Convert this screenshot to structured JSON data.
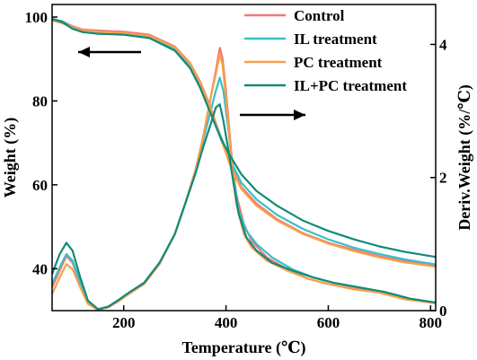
{
  "chart_data": {
    "type": "line",
    "xlabel": "Temperature (℃)",
    "ylabel_left": "Weight (%)",
    "ylabel_right": "Deriv.Weight (%/℃)",
    "xlim": [
      60,
      810
    ],
    "ylim_left": [
      30,
      103
    ],
    "ylim_right": [
      0,
      4.6
    ],
    "x_ticks": [
      200,
      400,
      600,
      800
    ],
    "y_ticks_left": [
      40,
      60,
      80,
      100
    ],
    "y_ticks_right": [
      0,
      2,
      4
    ],
    "legend_position": "top-right",
    "grid": false,
    "series": [
      {
        "name": "Control",
        "color": "#f07878",
        "weight": [
          [
            60,
            99.5
          ],
          [
            80,
            99.0
          ],
          [
            100,
            97.8
          ],
          [
            120,
            97.0
          ],
          [
            150,
            96.8
          ],
          [
            200,
            96.5
          ],
          [
            250,
            95.8
          ],
          [
            300,
            93.0
          ],
          [
            330,
            89.0
          ],
          [
            350,
            84.5
          ],
          [
            370,
            78.5
          ],
          [
            390,
            71.0
          ],
          [
            410,
            64.5
          ],
          [
            430,
            59.5
          ],
          [
            460,
            55.5
          ],
          [
            500,
            51.8
          ],
          [
            550,
            48.5
          ],
          [
            600,
            46.2
          ],
          [
            650,
            44.5
          ],
          [
            700,
            43.0
          ],
          [
            750,
            41.8
          ],
          [
            810,
            40.8
          ]
        ],
        "deriv": [
          [
            60,
            0.35
          ],
          [
            75,
            0.6
          ],
          [
            88,
            0.82
          ],
          [
            100,
            0.72
          ],
          [
            115,
            0.4
          ],
          [
            130,
            0.12
          ],
          [
            150,
            0.02
          ],
          [
            170,
            0.05
          ],
          [
            190,
            0.15
          ],
          [
            210,
            0.25
          ],
          [
            240,
            0.4
          ],
          [
            270,
            0.7
          ],
          [
            300,
            1.15
          ],
          [
            320,
            1.6
          ],
          [
            340,
            2.1
          ],
          [
            355,
            2.6
          ],
          [
            370,
            3.2
          ],
          [
            380,
            3.6
          ],
          [
            388,
            3.95
          ],
          [
            393,
            3.8
          ],
          [
            400,
            3.3
          ],
          [
            410,
            2.4
          ],
          [
            420,
            1.75
          ],
          [
            435,
            1.3
          ],
          [
            450,
            1.05
          ],
          [
            480,
            0.8
          ],
          [
            520,
            0.62
          ],
          [
            560,
            0.48
          ],
          [
            600,
            0.4
          ],
          [
            650,
            0.33
          ],
          [
            700,
            0.28
          ],
          [
            750,
            0.18
          ],
          [
            810,
            0.12
          ]
        ]
      },
      {
        "name": "IL treatment",
        "color": "#36c0c8",
        "weight": [
          [
            60,
            99.6
          ],
          [
            80,
            99.0
          ],
          [
            100,
            97.5
          ],
          [
            120,
            96.8
          ],
          [
            150,
            96.4
          ],
          [
            200,
            96.0
          ],
          [
            250,
            95.3
          ],
          [
            300,
            92.5
          ],
          [
            330,
            88.5
          ],
          [
            350,
            84.0
          ],
          [
            370,
            78.0
          ],
          [
            390,
            71.5
          ],
          [
            410,
            65.5
          ],
          [
            430,
            60.5
          ],
          [
            460,
            56.5
          ],
          [
            500,
            52.8
          ],
          [
            550,
            49.5
          ],
          [
            600,
            47.0
          ],
          [
            650,
            45.0
          ],
          [
            700,
            43.5
          ],
          [
            750,
            42.2
          ],
          [
            810,
            41.0
          ]
        ],
        "deriv": [
          [
            60,
            0.4
          ],
          [
            75,
            0.65
          ],
          [
            88,
            0.85
          ],
          [
            100,
            0.75
          ],
          [
            115,
            0.42
          ],
          [
            130,
            0.14
          ],
          [
            150,
            0.02
          ],
          [
            170,
            0.06
          ],
          [
            190,
            0.16
          ],
          [
            210,
            0.27
          ],
          [
            240,
            0.42
          ],
          [
            270,
            0.72
          ],
          [
            300,
            1.15
          ],
          [
            320,
            1.6
          ],
          [
            340,
            2.1
          ],
          [
            355,
            2.55
          ],
          [
            370,
            3.0
          ],
          [
            380,
            3.3
          ],
          [
            388,
            3.5
          ],
          [
            395,
            3.3
          ],
          [
            405,
            2.7
          ],
          [
            415,
            2.0
          ],
          [
            425,
            1.5
          ],
          [
            440,
            1.2
          ],
          [
            460,
            1.0
          ],
          [
            490,
            0.8
          ],
          [
            530,
            0.62
          ],
          [
            570,
            0.5
          ],
          [
            610,
            0.42
          ],
          [
            660,
            0.35
          ],
          [
            710,
            0.28
          ],
          [
            760,
            0.18
          ],
          [
            810,
            0.12
          ]
        ]
      },
      {
        "name": "PC treatment",
        "color": "#f7a04b",
        "weight": [
          [
            60,
            99.2
          ],
          [
            80,
            98.5
          ],
          [
            100,
            97.5
          ],
          [
            120,
            96.8
          ],
          [
            150,
            96.5
          ],
          [
            200,
            96.2
          ],
          [
            250,
            95.5
          ],
          [
            300,
            92.8
          ],
          [
            330,
            88.8
          ],
          [
            350,
            84.3
          ],
          [
            370,
            78.3
          ],
          [
            390,
            71.0
          ],
          [
            410,
            64.0
          ],
          [
            430,
            59.0
          ],
          [
            460,
            55.0
          ],
          [
            500,
            51.5
          ],
          [
            550,
            48.3
          ],
          [
            600,
            46.0
          ],
          [
            650,
            44.2
          ],
          [
            700,
            42.7
          ],
          [
            750,
            41.5
          ],
          [
            810,
            40.5
          ]
        ],
        "deriv": [
          [
            60,
            0.25
          ],
          [
            75,
            0.5
          ],
          [
            88,
            0.7
          ],
          [
            100,
            0.62
          ],
          [
            115,
            0.35
          ],
          [
            130,
            0.1
          ],
          [
            150,
            0.01
          ],
          [
            170,
            0.05
          ],
          [
            190,
            0.14
          ],
          [
            210,
            0.25
          ],
          [
            240,
            0.4
          ],
          [
            270,
            0.7
          ],
          [
            300,
            1.15
          ],
          [
            320,
            1.6
          ],
          [
            340,
            2.1
          ],
          [
            355,
            2.6
          ],
          [
            370,
            3.2
          ],
          [
            380,
            3.55
          ],
          [
            388,
            3.85
          ],
          [
            393,
            3.7
          ],
          [
            400,
            3.2
          ],
          [
            410,
            2.3
          ],
          [
            420,
            1.6
          ],
          [
            435,
            1.15
          ],
          [
            450,
            0.95
          ],
          [
            480,
            0.75
          ],
          [
            520,
            0.6
          ],
          [
            560,
            0.48
          ],
          [
            600,
            0.4
          ],
          [
            650,
            0.32
          ],
          [
            700,
            0.27
          ],
          [
            750,
            0.17
          ],
          [
            810,
            0.11
          ]
        ]
      },
      {
        "name": "IL+PC treatment",
        "color": "#138a78",
        "weight": [
          [
            60,
            99.5
          ],
          [
            80,
            98.8
          ],
          [
            100,
            97.2
          ],
          [
            120,
            96.4
          ],
          [
            150,
            96.0
          ],
          [
            200,
            95.8
          ],
          [
            250,
            95.0
          ],
          [
            300,
            92.0
          ],
          [
            330,
            87.8
          ],
          [
            350,
            83.0
          ],
          [
            370,
            77.0
          ],
          [
            390,
            71.0
          ],
          [
            410,
            66.5
          ],
          [
            430,
            62.5
          ],
          [
            460,
            58.5
          ],
          [
            500,
            55.0
          ],
          [
            550,
            51.5
          ],
          [
            600,
            49.0
          ],
          [
            650,
            47.0
          ],
          [
            700,
            45.3
          ],
          [
            750,
            44.0
          ],
          [
            810,
            42.8
          ]
        ],
        "deriv": [
          [
            60,
            0.55
          ],
          [
            75,
            0.85
          ],
          [
            88,
            1.02
          ],
          [
            100,
            0.9
          ],
          [
            115,
            0.5
          ],
          [
            130,
            0.15
          ],
          [
            150,
            0.02
          ],
          [
            170,
            0.06
          ],
          [
            190,
            0.16
          ],
          [
            210,
            0.27
          ],
          [
            240,
            0.42
          ],
          [
            270,
            0.72
          ],
          [
            300,
            1.15
          ],
          [
            320,
            1.6
          ],
          [
            340,
            2.05
          ],
          [
            355,
            2.45
          ],
          [
            370,
            2.8
          ],
          [
            380,
            3.05
          ],
          [
            388,
            3.1
          ],
          [
            395,
            2.85
          ],
          [
            405,
            2.4
          ],
          [
            415,
            1.9
          ],
          [
            425,
            1.45
          ],
          [
            440,
            1.1
          ],
          [
            460,
            0.9
          ],
          [
            490,
            0.72
          ],
          [
            530,
            0.6
          ],
          [
            570,
            0.5
          ],
          [
            610,
            0.42
          ],
          [
            660,
            0.35
          ],
          [
            710,
            0.28
          ],
          [
            760,
            0.18
          ],
          [
            810,
            0.12
          ]
        ]
      }
    ]
  }
}
